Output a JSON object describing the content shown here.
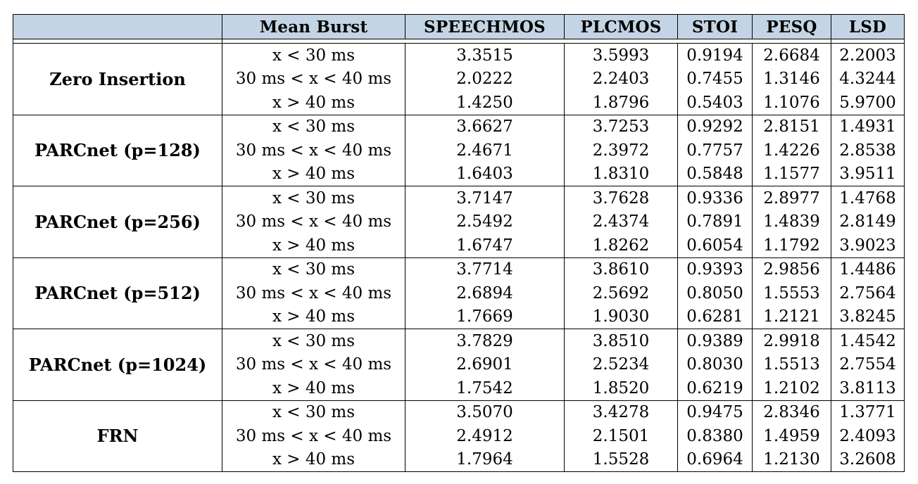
{
  "table": {
    "headers": [
      "",
      "Mean Burst",
      "SPEECHMOS",
      "PLCMOS",
      "STOI",
      "PESQ",
      "LSD"
    ],
    "groups": [
      {
        "method": "Zero Insertion",
        "rows": [
          {
            "burst": "x < 30 ms",
            "speechmos": "3.3515",
            "plcmos": "3.5993",
            "stoi": "0.9194",
            "pesq": "2.6684",
            "lsd": "2.2003"
          },
          {
            "burst": "30 ms < x < 40 ms",
            "speechmos": "2.0222",
            "plcmos": "2.2403",
            "stoi": "0.7455",
            "pesq": "1.3146",
            "lsd": "4.3244"
          },
          {
            "burst": "x > 40 ms",
            "speechmos": "1.4250",
            "plcmos": "1.8796",
            "stoi": "0.5403",
            "pesq": "1.1076",
            "lsd": "5.9700"
          }
        ]
      },
      {
        "method": "PARCnet (p=128)",
        "rows": [
          {
            "burst": "x < 30 ms",
            "speechmos": "3.6627",
            "plcmos": "3.7253",
            "stoi": "0.9292",
            "pesq": "2.8151",
            "lsd": "1.4931"
          },
          {
            "burst": "30 ms < x < 40 ms",
            "speechmos": "2.4671",
            "plcmos": "2.3972",
            "stoi": "0.7757",
            "pesq": "1.4226",
            "lsd": "2.8538"
          },
          {
            "burst": "x > 40 ms",
            "speechmos": "1.6403",
            "plcmos": "1.8310",
            "stoi": "0.5848",
            "pesq": "1.1577",
            "lsd": "3.9511"
          }
        ]
      },
      {
        "method": "PARCnet (p=256)",
        "rows": [
          {
            "burst": "x < 30 ms",
            "speechmos": "3.7147",
            "plcmos": "3.7628",
            "stoi": "0.9336",
            "pesq": "2.8977",
            "lsd": "1.4768"
          },
          {
            "burst": "30 ms < x < 40 ms",
            "speechmos": "2.5492",
            "plcmos": "2.4374",
            "stoi": "0.7891",
            "pesq": "1.4839",
            "lsd": "2.8149"
          },
          {
            "burst": "x > 40 ms",
            "speechmos": "1.6747",
            "plcmos": "1.8262",
            "stoi": "0.6054",
            "pesq": "1.1792",
            "lsd": "3.9023"
          }
        ]
      },
      {
        "method": "PARCnet (p=512)",
        "rows": [
          {
            "burst": "x < 30 ms",
            "speechmos": "3.7714",
            "plcmos": "3.8610",
            "stoi": "0.9393",
            "pesq": "2.9856",
            "lsd": "1.4486"
          },
          {
            "burst": "30 ms < x < 40 ms",
            "speechmos": "2.6894",
            "plcmos": "2.5692",
            "stoi": "0.8050",
            "pesq": "1.5553",
            "lsd": "2.7564"
          },
          {
            "burst": "x > 40 ms",
            "speechmos": "1.7669",
            "plcmos": "1.9030",
            "stoi": "0.6281",
            "pesq": "1.2121",
            "lsd": "3.8245"
          }
        ]
      },
      {
        "method": "PARCnet (p=1024)",
        "rows": [
          {
            "burst": "x < 30 ms",
            "speechmos": "3.7829",
            "plcmos": "3.8510",
            "stoi": "0.9389",
            "pesq": "2.9918",
            "lsd": "1.4542"
          },
          {
            "burst": "30 ms < x < 40 ms",
            "speechmos": "2.6901",
            "plcmos": "2.5234",
            "stoi": "0.8030",
            "pesq": "1.5513",
            "lsd": "2.7554"
          },
          {
            "burst": "x > 40 ms",
            "speechmos": "1.7542",
            "plcmos": "1.8520",
            "stoi": "0.6219",
            "pesq": "1.2102",
            "lsd": "3.8113"
          }
        ]
      },
      {
        "method": "FRN",
        "rows": [
          {
            "burst": "x < 30 ms",
            "speechmos": "3.5070",
            "plcmos": "3.4278",
            "stoi": "0.9475",
            "pesq": "2.8346",
            "lsd": "1.3771"
          },
          {
            "burst": "30 ms < x < 40 ms",
            "speechmos": "2.4912",
            "plcmos": "2.1501",
            "stoi": "0.8380",
            "pesq": "1.4959",
            "lsd": "2.4093"
          },
          {
            "burst": "x > 40 ms",
            "speechmos": "1.7964",
            "plcmos": "1.5528",
            "stoi": "0.6964",
            "pesq": "1.2130",
            "lsd": "3.2608"
          }
        ]
      }
    ]
  },
  "colors": {
    "header_bg": "#c3d5e4",
    "border": "#000000"
  }
}
